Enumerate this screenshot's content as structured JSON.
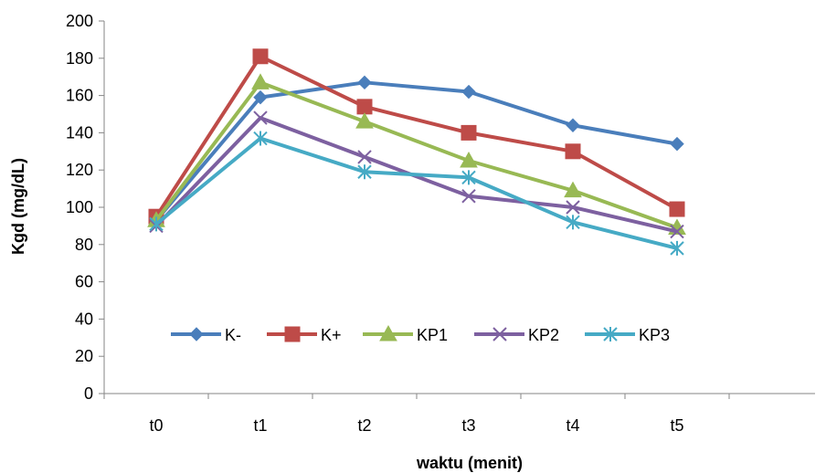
{
  "chart_data": {
    "type": "line",
    "title": "",
    "xlabel": "waktu (menit)",
    "ylabel": "Kgd (mg/dL)",
    "categories": [
      "t0",
      "t1",
      "t2",
      "t3",
      "t4",
      "t5"
    ],
    "ylim": [
      0,
      200
    ],
    "yticks": [
      0,
      20,
      40,
      60,
      80,
      100,
      120,
      140,
      160,
      180,
      200
    ],
    "grid": false,
    "legend_position": "inside-bottom-center",
    "series": [
      {
        "name": "K-",
        "color": "#4a7ebb",
        "marker": "diamond",
        "values": [
          93,
          159,
          167,
          162,
          144,
          134
        ]
      },
      {
        "name": "K+",
        "color": "#be4b48",
        "marker": "square",
        "values": [
          95,
          181,
          154,
          140,
          130,
          99
        ]
      },
      {
        "name": "KP1",
        "color": "#98b954",
        "marker": "triangle",
        "values": [
          93,
          167,
          146,
          125,
          109,
          89
        ]
      },
      {
        "name": "KP2",
        "color": "#7d60a0",
        "marker": "x",
        "values": [
          90,
          148,
          127,
          106,
          100,
          87
        ]
      },
      {
        "name": "KP3",
        "color": "#46aac5",
        "marker": "asterisk",
        "values": [
          91,
          137,
          119,
          116,
          92,
          78
        ]
      }
    ]
  }
}
